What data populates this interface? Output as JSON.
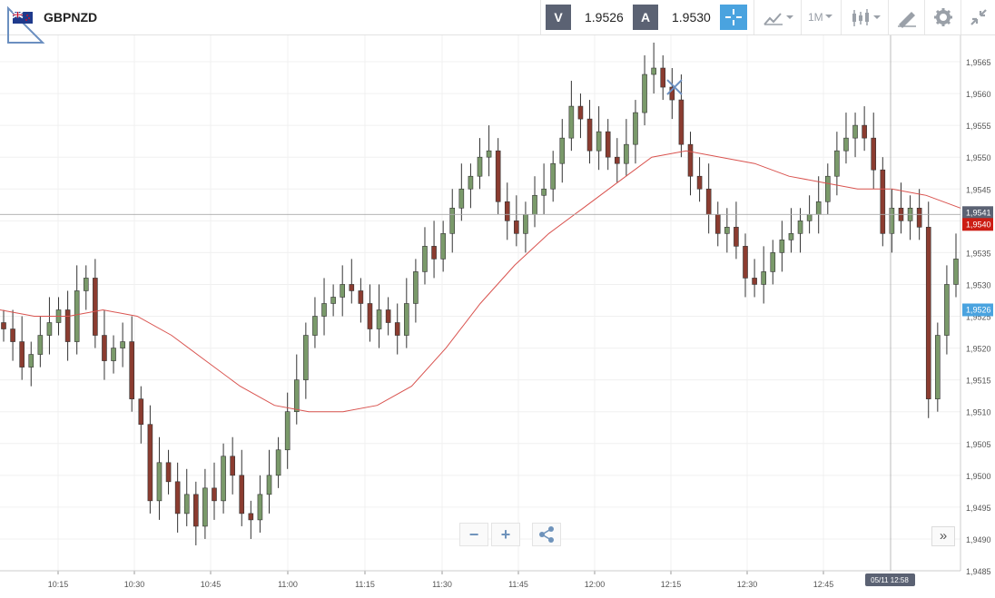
{
  "header": {
    "symbol": "GBPNZD",
    "bid_label": "V",
    "bid_price": "1.9526",
    "ask_label": "A",
    "ask_price": "1.9530",
    "timeframe": "1M",
    "accent": "#4aa3df"
  },
  "icons": {
    "crosshair": "crosshair-icon",
    "chart_type": "line-chart-icon",
    "candles": "candlestick-icon",
    "draw": "drawing-tool-icon",
    "settings": "gear-icon",
    "fullscreen": "collapse-icon",
    "share": "share-icon"
  },
  "controls": {
    "zoom_out": "−",
    "zoom_in": "+",
    "scroll_end": "»"
  },
  "chart_data": {
    "type": "candlestick",
    "colors": {
      "up": "#7a9a6a",
      "down": "#8b3c30",
      "ma": "#d9534f",
      "current": "#4aa3df",
      "crosshair_tag": "#cc1d14"
    },
    "y_ticks": [
      "1,9485",
      "1,9490",
      "1,9495",
      "1,9500",
      "1,9505",
      "1,9510",
      "1,9515",
      "1,9520",
      "1,9525",
      "1,9530",
      "1,9535",
      "1,9540",
      "1,9545",
      "1,9550",
      "1,9555",
      "1,9560",
      "1,9565"
    ],
    "x_ticks": [
      "10:15",
      "10:30",
      "10:45",
      "11:00",
      "11:15",
      "11:30",
      "11:45",
      "12:00",
      "12:15",
      "12:30",
      "12:45"
    ],
    "crosshair_price": "1,9541",
    "ma_price": "1,9540",
    "current_price": "1,9526",
    "crosshair_time": "05/11 12:58",
    "ylim": [
      1.9485,
      1.9568
    ],
    "grid": true
  }
}
